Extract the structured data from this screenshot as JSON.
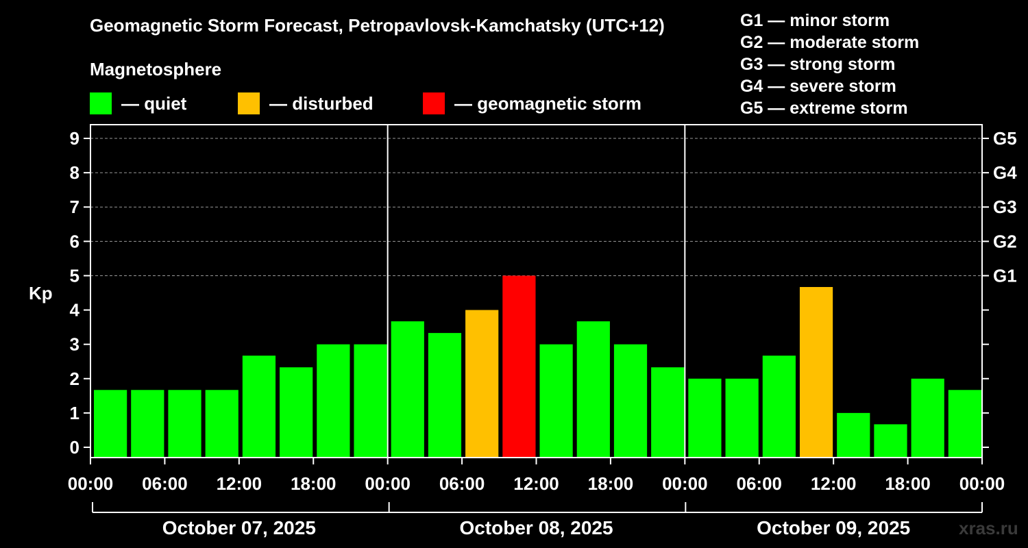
{
  "title": "Geomagnetic Storm Forecast, Petropavlovsk-Kamchatsky (UTC+12)",
  "magnetosphere": {
    "title": "Magnetosphere",
    "legend": [
      {
        "label": "— quiet",
        "color": "#00ff00"
      },
      {
        "label": "— disturbed",
        "color": "#ffc000"
      },
      {
        "label": "— geomagnetic storm",
        "color": "#ff0000"
      }
    ]
  },
  "storm_levels": [
    {
      "label": "G1 — minor storm"
    },
    {
      "label": "G2 — moderate storm"
    },
    {
      "label": "G3 — strong storm"
    },
    {
      "label": "G4 — severe storm"
    },
    {
      "label": "G5 — extreme storm"
    }
  ],
  "watermark": "xras.ru",
  "chart_data": {
    "type": "bar",
    "ylabel": "Kp",
    "ylim": [
      -0.3,
      9.4
    ],
    "yticks": [
      0,
      1,
      2,
      3,
      4,
      5,
      6,
      7,
      8,
      9
    ],
    "right_ticks": [
      {
        "value": 5,
        "label": "G1"
      },
      {
        "value": 6,
        "label": "G2"
      },
      {
        "value": 7,
        "label": "G3"
      },
      {
        "value": 8,
        "label": "G4"
      },
      {
        "value": 9,
        "label": "G5"
      }
    ],
    "grid": true,
    "xtick_labels": [
      "00:00",
      "06:00",
      "12:00",
      "18:00",
      "00:00",
      "06:00",
      "12:00",
      "18:00",
      "00:00",
      "06:00",
      "12:00",
      "18:00",
      "00:00"
    ],
    "days": [
      "October 07, 2025",
      "October 08, 2025",
      "October 09, 2025"
    ],
    "colors": {
      "quiet": "#00ff00",
      "disturbed": "#ffc000",
      "storm": "#ff0000"
    },
    "values": [
      1.67,
      1.67,
      1.67,
      1.67,
      2.67,
      2.33,
      3.0,
      3.0,
      3.67,
      3.33,
      4.0,
      5.0,
      3.0,
      3.67,
      3.0,
      2.33,
      2.0,
      2.0,
      2.67,
      4.67,
      1.0,
      0.67,
      2.0,
      1.67
    ],
    "levels": [
      "quiet",
      "quiet",
      "quiet",
      "quiet",
      "quiet",
      "quiet",
      "quiet",
      "quiet",
      "quiet",
      "quiet",
      "disturbed",
      "storm",
      "quiet",
      "quiet",
      "quiet",
      "quiet",
      "quiet",
      "quiet",
      "quiet",
      "disturbed",
      "quiet",
      "quiet",
      "quiet",
      "quiet"
    ]
  }
}
